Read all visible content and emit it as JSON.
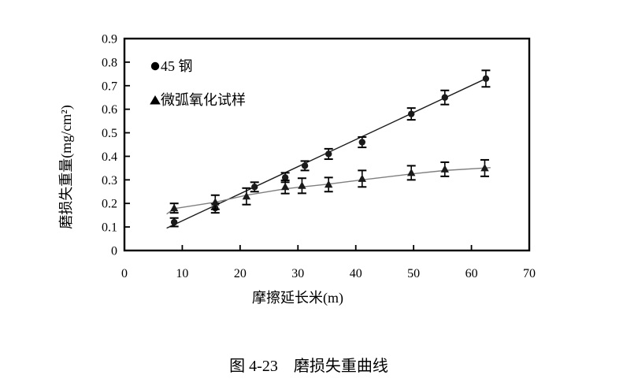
{
  "caption": "图 4-23　磨损失重曲线",
  "colors": {
    "background": "#ffffff",
    "ink": "#000000",
    "steel_line": "#1a1a1a",
    "mao_line": "#7f7f7f"
  },
  "chart_data": {
    "type": "line",
    "title": "",
    "xlabel": "摩擦延长米(m)",
    "ylabel": "磨损失重量(mg/cm²)",
    "xlim": [
      0,
      70
    ],
    "ylim": [
      0,
      0.9
    ],
    "grid": false,
    "legend_position": "inside-top-left",
    "x_ticks": {
      "values": [
        0,
        10,
        20,
        30,
        40,
        50,
        60,
        70
      ],
      "labels": [
        "0",
        "10",
        "20",
        "30",
        "40",
        "50",
        "60",
        "70"
      ]
    },
    "y_ticks": {
      "values": [
        0,
        0.1,
        0.2,
        0.3,
        0.4,
        0.5,
        0.6,
        0.7,
        0.8,
        0.9
      ],
      "labels": [
        "0",
        "0.1",
        "0.2",
        "0.3",
        "0.4",
        "0.5",
        "0.6",
        "0.7",
        "0.8",
        "0.9"
      ]
    },
    "series": [
      {
        "name": "45 钢",
        "marker": "circle",
        "color": "#1a1a1a",
        "line_color": "#1a1a1a",
        "line_style": "straight-fit",
        "x": [
          8.6,
          15.7,
          22.5,
          27.8,
          31.2,
          35.3,
          41.1,
          49.6,
          55.4,
          62.5
        ],
        "y": [
          0.12,
          0.18,
          0.27,
          0.31,
          0.36,
          0.41,
          0.46,
          0.58,
          0.65,
          0.73
        ],
        "err": [
          0.018,
          0.02,
          0.02,
          0.02,
          0.02,
          0.022,
          0.022,
          0.025,
          0.03,
          0.035
        ],
        "trend_line": [
          [
            7.3,
            0.095
          ],
          [
            62.5,
            0.73
          ]
        ]
      },
      {
        "name": "微弧氧化试样",
        "marker": "triangle",
        "color": "#1a1a1a",
        "line_color": "#7f7f7f",
        "line_style": "smooth",
        "x": [
          8.6,
          15.7,
          21.1,
          27.8,
          30.7,
          35.3,
          41.1,
          49.6,
          55.4,
          62.3
        ],
        "y": [
          0.18,
          0.205,
          0.23,
          0.27,
          0.275,
          0.28,
          0.305,
          0.33,
          0.345,
          0.35
        ],
        "err": [
          0.02,
          0.03,
          0.035,
          0.028,
          0.032,
          0.03,
          0.035,
          0.03,
          0.03,
          0.035
        ],
        "trend_line": [
          [
            7.3,
            0.155
          ],
          [
            8.6,
            0.178
          ],
          [
            15.7,
            0.205
          ],
          [
            21.1,
            0.235
          ],
          [
            27.8,
            0.262
          ],
          [
            30.7,
            0.27
          ],
          [
            35.3,
            0.282
          ],
          [
            41.1,
            0.3
          ],
          [
            49.6,
            0.325
          ],
          [
            55.4,
            0.34
          ],
          [
            63.3,
            0.352
          ]
        ]
      }
    ]
  }
}
